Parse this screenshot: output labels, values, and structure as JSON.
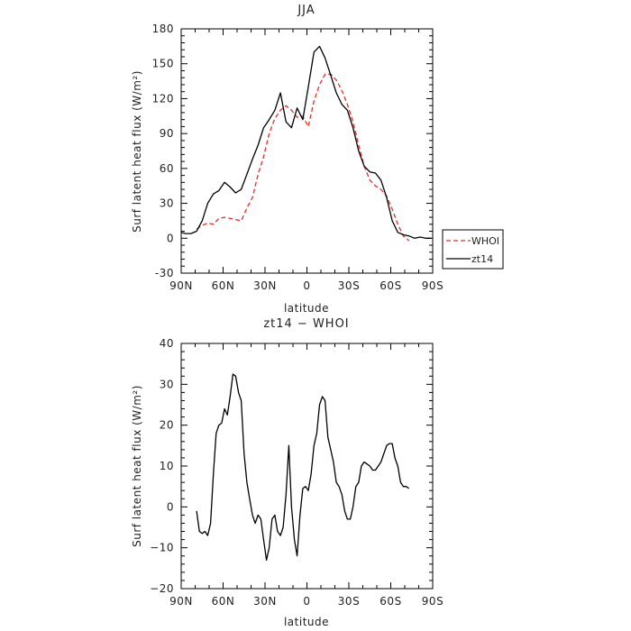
{
  "chart_data": [
    {
      "type": "line",
      "title": "JJA",
      "xlabel": "latitude",
      "ylabel": "Surf latent heat flux (W/m²)",
      "xlim": [
        90,
        -90
      ],
      "ylim": [
        -30,
        180
      ],
      "x_ticks": [
        90,
        60,
        30,
        0,
        -30,
        -60,
        -90
      ],
      "x_tick_labels": [
        "90N",
        "60N",
        "30N",
        "0",
        "30S",
        "60S",
        "90S"
      ],
      "y_ticks": [
        -30,
        0,
        30,
        60,
        90,
        120,
        150,
        180
      ],
      "y_tick_labels": [
        "-30",
        "0",
        "30",
        "60",
        "90",
        "120",
        "150",
        "180"
      ],
      "legend": {
        "placement": "right",
        "entries": [
          "WHOI",
          "zt14"
        ]
      },
      "series": [
        {
          "name": "WHOI",
          "color": "#e0302b",
          "dash": "dashed",
          "x": [
            79,
            75,
            71,
            67,
            63,
            59,
            55,
            51,
            47,
            43,
            39,
            35,
            31,
            27,
            23,
            19,
            15,
            11,
            7,
            3,
            -1,
            -5,
            -9,
            -13,
            -17,
            -21,
            -25,
            -29,
            -33,
            -37,
            -41,
            -45,
            -49,
            -53,
            -57,
            -61,
            -65,
            -69,
            -73
          ],
          "values": [
            8,
            11,
            13,
            12,
            17,
            18,
            17,
            16,
            15,
            26,
            35,
            55,
            70,
            90,
            103,
            110,
            114,
            110,
            104,
            105,
            96,
            118,
            132,
            141,
            141,
            136,
            127,
            115,
            100,
            80,
            62,
            50,
            45,
            42,
            36,
            25,
            12,
            2,
            -2
          ]
        },
        {
          "name": "zt14",
          "color": "#000000",
          "dash": "solid",
          "x": [
            90,
            87,
            83,
            79,
            75,
            71,
            67,
            63,
            59,
            55,
            51,
            47,
            43,
            39,
            35,
            31,
            27,
            23,
            19,
            15,
            11,
            7,
            3,
            -1,
            -5,
            -9,
            -13,
            -17,
            -21,
            -25,
            -29,
            -33,
            -37,
            -41,
            -45,
            -49,
            -53,
            -57,
            -61,
            -65,
            -69,
            -73,
            -77,
            -81,
            -85,
            -89
          ],
          "values": [
            5,
            4,
            4,
            6,
            15,
            30,
            38,
            41,
            48,
            44,
            39,
            42,
            55,
            68,
            80,
            95,
            102,
            110,
            125,
            100,
            95,
            112,
            102,
            130,
            160,
            165,
            155,
            140,
            125,
            115,
            110,
            95,
            75,
            62,
            57,
            56,
            50,
            35,
            15,
            5,
            3,
            2,
            0,
            1,
            0,
            0
          ]
        }
      ]
    },
    {
      "type": "line",
      "title": "zt14 − WHOI",
      "xlabel": "latitude",
      "ylabel": "Surf latent heat flux (W/m²)",
      "xlim": [
        90,
        -90
      ],
      "ylim": [
        -20,
        40
      ],
      "x_ticks": [
        90,
        60,
        30,
        0,
        -30,
        -60,
        -90
      ],
      "x_tick_labels": [
        "90N",
        "60N",
        "30N",
        "0",
        "30S",
        "60S",
        "90S"
      ],
      "y_ticks": [
        -20,
        -10,
        0,
        10,
        20,
        30,
        40
      ],
      "y_tick_labels": [
        "−20",
        "−10",
        "0",
        "10",
        "20",
        "30",
        "40"
      ],
      "series": [
        {
          "color": "#000000",
          "dash": "solid",
          "x": [
            79,
            77,
            75,
            73,
            71,
            69,
            67,
            65,
            63,
            61,
            59,
            57,
            55,
            53,
            51,
            49,
            47,
            45,
            43,
            41,
            39,
            37,
            35,
            33,
            31,
            29,
            27,
            25,
            23,
            21,
            19,
            17,
            15,
            13,
            11,
            9,
            7,
            5,
            3,
            1,
            -1,
            -3,
            -5,
            -7,
            -9,
            -11,
            -13,
            -15,
            -17,
            -19,
            -21,
            -23,
            -25,
            -27,
            -29,
            -31,
            -33,
            -35,
            -37,
            -39,
            -41,
            -43,
            -45,
            -47,
            -49,
            -51,
            -53,
            -55,
            -57,
            -59,
            -61,
            -63,
            -65,
            -67,
            -69,
            -71,
            -73
          ],
          "values": [
            -1,
            -6,
            -6.5,
            -6,
            -7,
            -4,
            8,
            18,
            20,
            20.5,
            24,
            22.5,
            27,
            32.5,
            32,
            28,
            26,
            13,
            6,
            2,
            -2,
            -4,
            -2,
            -3,
            -8,
            -13,
            -10,
            -3,
            -2,
            -6,
            -7,
            -5,
            3,
            15,
            0,
            -8,
            -12,
            -2,
            4.5,
            5,
            4,
            8,
            15,
            18,
            25,
            27,
            26,
            17,
            14,
            11,
            6,
            5,
            3,
            -1,
            -3,
            -3,
            0,
            5,
            6,
            10,
            11,
            10.5,
            10,
            9,
            9,
            10,
            11,
            13,
            15,
            15.5,
            15.5,
            12,
            10,
            6,
            5,
            5,
            4.5
          ]
        }
      ]
    }
  ]
}
